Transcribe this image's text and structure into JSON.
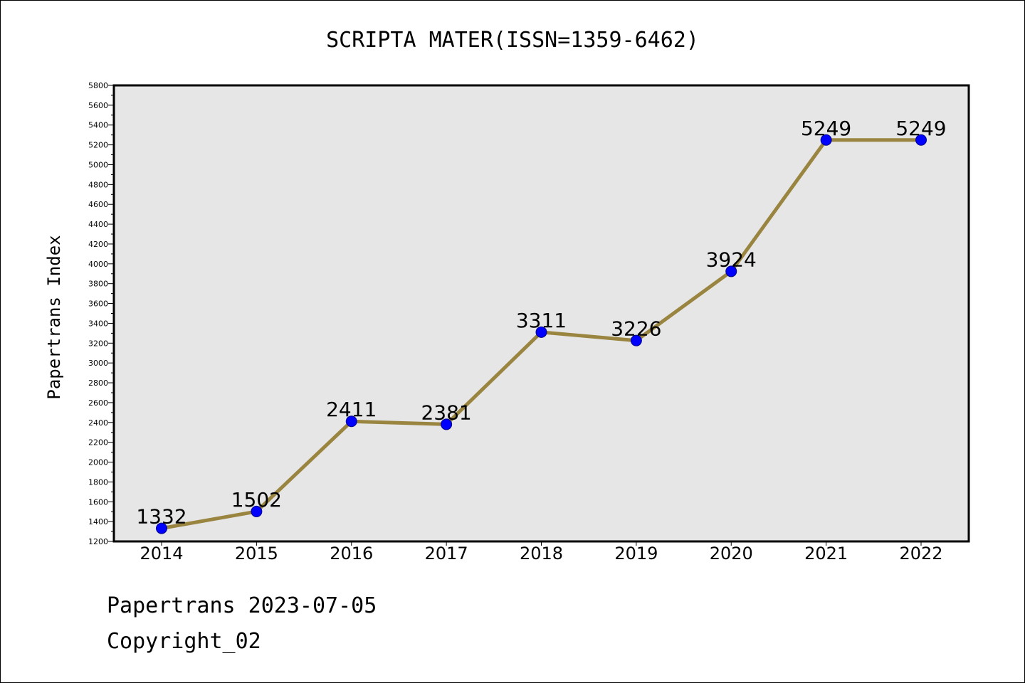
{
  "chart_data": {
    "type": "line",
    "title": "SCRIPTA MATER(ISSN=1359-6462)",
    "xlabel": "",
    "ylabel": "Papertrans Index",
    "categories": [
      "2014",
      "2015",
      "2016",
      "2017",
      "2018",
      "2019",
      "2020",
      "2021",
      "2022"
    ],
    "values": [
      1332,
      1502,
      2411,
      2381,
      3311,
      3226,
      3924,
      5249,
      5249
    ],
    "value_labels": [
      "1332",
      "1502",
      "2411",
      "2381",
      "3311",
      "3226",
      "3924",
      "5249",
      "5249"
    ],
    "ylim": [
      1200,
      5800
    ],
    "yticks": [
      "1200",
      "1400",
      "1600",
      "1800",
      "2000",
      "2200",
      "2400",
      "2600",
      "2800",
      "3000",
      "3200",
      "3400",
      "3600",
      "3800",
      "4000",
      "4200",
      "4400",
      "4600",
      "4800",
      "5000",
      "5200",
      "5400",
      "5600",
      "5800"
    ],
    "grid": false,
    "colors": {
      "line": "#9a8540",
      "marker": "#0000ff",
      "marker_edge": "#00008b",
      "plot_background": "#e6e6e6"
    }
  },
  "footer": {
    "line1": "Papertrans 2023-07-05",
    "line2": "Copyright_02"
  }
}
